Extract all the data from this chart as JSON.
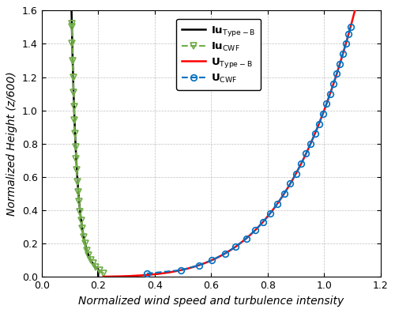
{
  "xlim": [
    0,
    1.2
  ],
  "ylim": [
    0,
    1.6
  ],
  "xticks": [
    0,
    0.2,
    0.4,
    0.6,
    0.8,
    1.0,
    1.2
  ],
  "yticks": [
    0,
    0.2,
    0.4,
    0.6,
    0.8,
    1.0,
    1.2,
    1.4,
    1.6
  ],
  "xlabel": "Normalized wind speed and turbulence intensity",
  "ylabel": "Normalized Height (z/600)",
  "U_alpha": 0.22,
  "Iu_coeff": 0.115,
  "Iu_exp": -0.18,
  "Iu_max": 0.2,
  "colors": {
    "U_TypeB": "#ff0000",
    "U_CWF": "#0070c0",
    "Iu_TypeB": "#000000",
    "Iu_CWF": "#70ad47"
  },
  "legend_labels": [
    "U$_\\mathrm{Type-B}$",
    "U$_\\mathrm{CWF}$",
    "Iu$_\\mathrm{Type-B}$",
    "Iu$_\\mathrm{CWF}$"
  ],
  "U_CWF_heights": [
    0.02,
    0.04,
    0.07,
    0.1,
    0.14,
    0.18,
    0.23,
    0.28,
    0.33,
    0.38,
    0.44,
    0.5,
    0.56,
    0.62,
    0.68,
    0.74,
    0.8,
    0.86,
    0.92,
    0.98,
    1.04,
    1.1,
    1.16,
    1.22,
    1.28,
    1.34,
    1.4,
    1.46,
    1.5
  ],
  "Iu_CWF_heights": [
    0.02,
    0.04,
    0.06,
    0.08,
    0.1,
    0.13,
    0.16,
    0.2,
    0.24,
    0.29,
    0.34,
    0.39,
    0.45,
    0.51,
    0.57,
    0.64,
    0.71,
    0.78,
    0.86,
    0.94,
    1.02,
    1.11,
    1.2,
    1.3,
    1.4,
    1.5,
    1.52
  ]
}
